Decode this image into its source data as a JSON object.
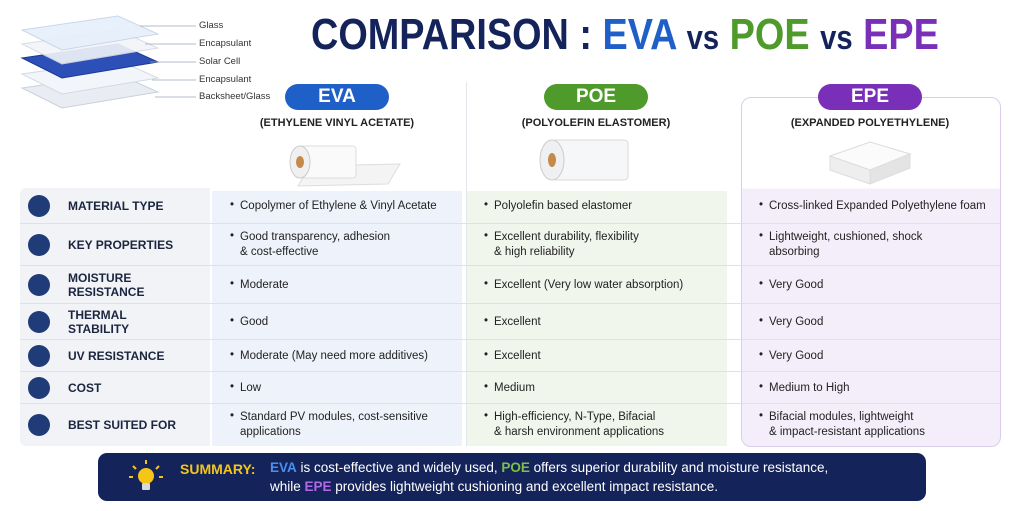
{
  "title": {
    "parts": [
      {
        "text": "COMPARISON :",
        "color": "#14245a"
      },
      {
        "text": "EVA",
        "color": "#1f5fc8"
      },
      {
        "text": "vs",
        "color": "#14245a"
      },
      {
        "text": "POE",
        "color": "#4e9a2a"
      },
      {
        "text": "vs",
        "color": "#14245a"
      },
      {
        "text": "EPE",
        "color": "#7a2fb8"
      }
    ]
  },
  "diagram": {
    "layers": [
      "Glass",
      "Encapsulant",
      "Solar Cell",
      "Encapsulant",
      "Backsheet/Glass"
    ]
  },
  "columns": [
    {
      "name": "EVA",
      "subtitle": "(ETHYLENE VINYL ACETATE)",
      "color": "#1f5fc8"
    },
    {
      "name": "POE",
      "subtitle": "(POLYOLEFIN ELASTOMER)",
      "color": "#4e9a2a"
    },
    {
      "name": "EPE",
      "subtitle": "(EXPANDED POLYETHYLENE)",
      "color": "#7a2fb8"
    }
  ],
  "rows": [
    {
      "label": [
        "MATERIAL TYPE"
      ],
      "cells": [
        [
          "Copolymer of Ethylene & Vinyl Acetate"
        ],
        [
          "Polyolefin based elastomer"
        ],
        [
          "Cross-linked Expanded Polyethylene foam"
        ]
      ]
    },
    {
      "label": [
        "KEY PROPERTIES"
      ],
      "cells": [
        [
          "Good transparency, adhesion",
          "& cost-effective"
        ],
        [
          "Excellent durability, flexibility",
          "& high reliability"
        ],
        [
          "Lightweight, cushioned, shock",
          "absorbing"
        ]
      ]
    },
    {
      "label": [
        "MOISTURE",
        "RESISTANCE"
      ],
      "cells": [
        [
          "Moderate"
        ],
        [
          "Excellent (Very low water absorption)"
        ],
        [
          "Very Good"
        ]
      ]
    },
    {
      "label": [
        "THERMAL",
        "STABILITY"
      ],
      "cells": [
        [
          "Good"
        ],
        [
          "Excellent"
        ],
        [
          "Very Good"
        ]
      ]
    },
    {
      "label": [
        "UV RESISTANCE"
      ],
      "cells": [
        [
          "Moderate (May need more additives)"
        ],
        [
          "Excellent"
        ],
        [
          "Very Good"
        ]
      ]
    },
    {
      "label": [
        "COST"
      ],
      "cells": [
        [
          "Low"
        ],
        [
          "Medium"
        ],
        [
          "Medium to High"
        ]
      ]
    },
    {
      "label": [
        "BEST SUITED FOR"
      ],
      "cells": [
        [
          "Standard PV modules, cost-sensitive",
          "applications"
        ],
        [
          "High-efficiency, N-Type, Bifacial",
          "& harsh environment applications"
        ],
        [
          "Bifacial modules, lightweight",
          "& impact-resistant applications"
        ]
      ]
    }
  ],
  "summary": {
    "label": "SUMMARY:",
    "lines": [
      [
        {
          "text": "EVA",
          "color": "#4a90f0"
        },
        {
          "text": " is cost-effective and widely used, ",
          "color": "#ffffff"
        },
        {
          "text": "POE",
          "color": "#7cc242"
        },
        {
          "text": " offers superior durability and moisture resistance,",
          "color": "#ffffff"
        }
      ],
      [
        {
          "text": "while ",
          "color": "#ffffff"
        },
        {
          "text": "EPE",
          "color": "#b06ae6"
        },
        {
          "text": " provides lightweight cushioning and excellent impact resistance.",
          "color": "#ffffff"
        }
      ]
    ]
  }
}
